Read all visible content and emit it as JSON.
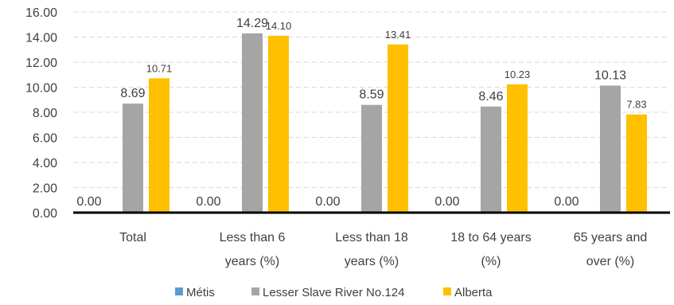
{
  "chart_data": {
    "type": "bar",
    "title": "",
    "xlabel": "",
    "ylabel": "",
    "ylim": [
      0,
      16
    ],
    "y_ticks": [
      "0.00",
      "2.00",
      "4.00",
      "6.00",
      "8.00",
      "10.00",
      "12.00",
      "14.00",
      "16.00"
    ],
    "grid": true,
    "legend_position": "bottom",
    "categories": [
      [
        "Total"
      ],
      [
        "Less than 6",
        "years (%)"
      ],
      [
        "Less than 18",
        "years (%)"
      ],
      [
        "18 to 64 years",
        "(%)"
      ],
      [
        "65 years and",
        "over (%)"
      ]
    ],
    "series": [
      {
        "name": "Métis",
        "color": "#5B9BD5",
        "values": [
          0.0,
          0.0,
          0.0,
          0.0,
          0.0
        ],
        "labels": [
          "0.00",
          "0.00",
          "0.00",
          "0.00",
          "0.00"
        ]
      },
      {
        "name": "Lesser Slave River No.124",
        "color": "#A5A5A5",
        "values": [
          8.69,
          14.29,
          8.59,
          8.46,
          10.13
        ],
        "labels": [
          "8.69",
          "14.29",
          "8.59",
          "8.46",
          "10.13"
        ]
      },
      {
        "name": "Alberta",
        "color": "#FFC000",
        "values": [
          10.71,
          14.1,
          13.41,
          10.23,
          7.83
        ],
        "labels": [
          "10.71",
          "14.10",
          "13.41",
          "10.23",
          "7.83"
        ]
      }
    ]
  }
}
